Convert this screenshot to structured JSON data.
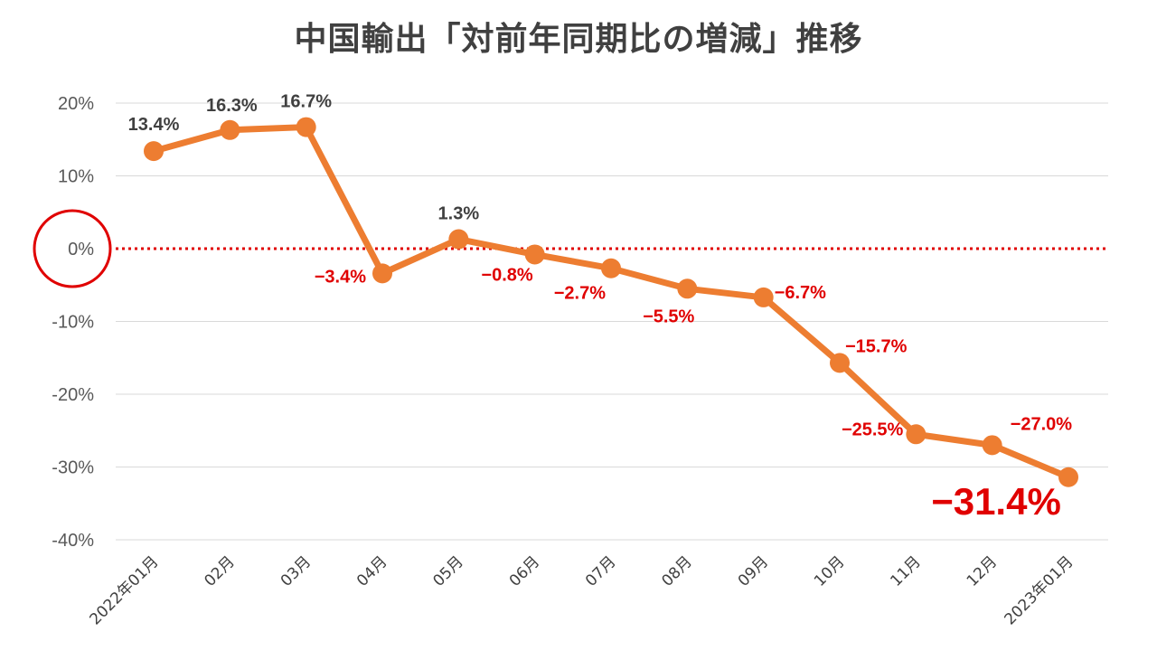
{
  "chart_data": {
    "type": "line",
    "title": "中国輸出「対前年同期比の増減」推移",
    "xlabel": "",
    "ylabel": "",
    "ylim": [
      -40,
      20
    ],
    "yticks": [
      20,
      10,
      0,
      -10,
      -20,
      -30,
      -40
    ],
    "ytick_labels": [
      "20%",
      "10%",
      "0%",
      "-10%",
      "-20%",
      "-30%",
      "-40%"
    ],
    "grid": true,
    "categories": [
      "2022年01月",
      "02月",
      "03月",
      "04月",
      "05月",
      "06月",
      "07月",
      "08月",
      "09月",
      "10月",
      "11月",
      "12月",
      "2023年01月"
    ],
    "series": [
      {
        "name": "対前年同期比",
        "values": [
          13.4,
          16.3,
          16.7,
          -3.4,
          1.3,
          -0.8,
          -2.7,
          -5.5,
          -6.7,
          -15.7,
          -25.5,
          -27.0,
          -31.4
        ],
        "labels": [
          "13.4%",
          "16.3%",
          "16.7%",
          "−3.4%",
          "1.3%",
          "−0.8%",
          "−2.7%",
          "−5.5%",
          "−6.7%",
          "−15.7%",
          "−25.5%",
          "−27.0%",
          "−31.4%"
        ],
        "color": "#ed7d31"
      }
    ],
    "zero_line_color": "#e00000",
    "positive_label_color": "#404040",
    "negative_label_color": "#e00000",
    "highlight_circle_color": "#e00000"
  }
}
